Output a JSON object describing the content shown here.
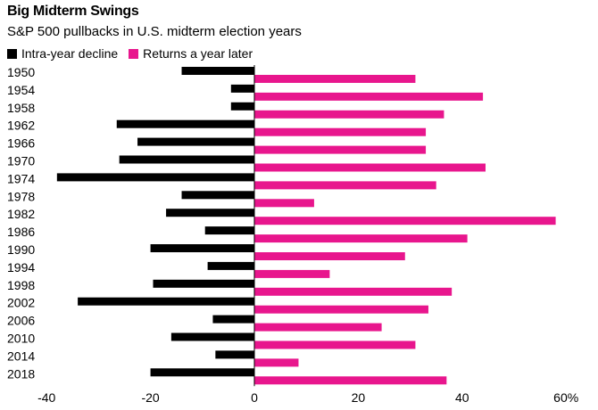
{
  "chart_data": {
    "type": "bar",
    "orientation": "horizontal",
    "title": "Big Midterm Swings",
    "subtitle": "S&P 500 pullbacks in U.S. midterm election years",
    "categories": [
      "1950",
      "1954",
      "1958",
      "1962",
      "1966",
      "1970",
      "1974",
      "1978",
      "1982",
      "1986",
      "1990",
      "1994",
      "1998",
      "2002",
      "2006",
      "2010",
      "2014",
      "2018"
    ],
    "series": [
      {
        "name": "Intra-year decline",
        "color": "#000000",
        "values": [
          -14,
          -4.5,
          -4.5,
          -26.5,
          -22.5,
          -26,
          -38,
          -14,
          -17,
          -9.5,
          -20,
          -9,
          -19.5,
          -34,
          -8,
          -16,
          -7.5,
          -20
        ]
      },
      {
        "name": "Returns a year later",
        "color": "#e8168d",
        "values": [
          31,
          44,
          36.5,
          33,
          33,
          44.5,
          35,
          11.5,
          58,
          41,
          29,
          14.5,
          38,
          33.5,
          24.5,
          31,
          8.5,
          37
        ]
      }
    ],
    "xlim": [
      -40,
      60
    ],
    "xticks": [
      "-40",
      "-20",
      "0",
      "20",
      "40",
      "60%"
    ],
    "xtick_values": [
      -40,
      -20,
      0,
      20,
      40,
      60
    ],
    "xlabel": "",
    "ylabel": ""
  }
}
